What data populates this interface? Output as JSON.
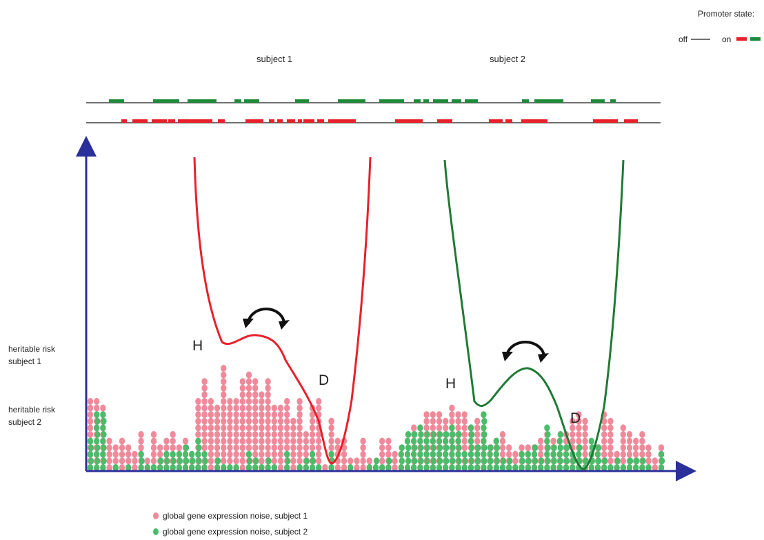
{
  "legend_top": {
    "title": "Promoter state:",
    "off_label": "off",
    "on_label": "on",
    "off_color": "#1a1a1a",
    "on_colors": [
      "#e8202a",
      "#1f8a3a"
    ]
  },
  "subjects": {
    "subject1_label": "subject 1",
    "subject2_label": "subject 2"
  },
  "left_labels": {
    "risk1_line1": "heritable risk",
    "risk1_line2": "subject 1",
    "risk2_line1": "heritable risk",
    "risk2_line2": "subject 2"
  },
  "wells": {
    "h1": "H",
    "d1": "D",
    "h2": "H",
    "d2": "D",
    "subject1_color": "#e8202a",
    "subject2_color": "#1f7a35"
  },
  "legend_bottom": {
    "noise1": "global gene expression noise, subject 1",
    "noise2": "global gene expression noise, subject 2",
    "noise1_color": "#f08a9a",
    "noise2_color": "#4cbb6a"
  },
  "axis_color": "#2a2f9a"
}
